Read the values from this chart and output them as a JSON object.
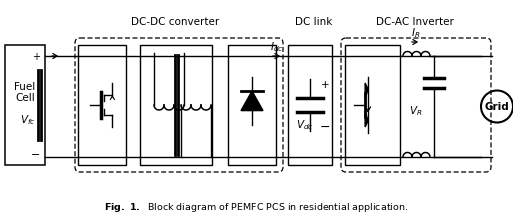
{
  "fig_width": 5.13,
  "fig_height": 2.22,
  "dpi": 100,
  "bg": "#ffffff",
  "lbl_dcdc": "DC-DC converter",
  "lbl_dclink": "DC link",
  "lbl_dcac": "DC-AC Inverter",
  "lbl_fc1": "Fuel",
  "lbl_fc2": "Cell",
  "lbl_vfc": "$V_{fc}$",
  "lbl_vdc": "$V_{dc}$",
  "lbl_idc": "$I_{dc}$",
  "lbl_ir": "$I_R$",
  "lbl_vr": "$V_R$",
  "lbl_grid": "Grid",
  "lbl_plus": "+",
  "lbl_minus": "−",
  "cap_bold": "Fig. 1.",
  "cap_rest": "  Block diagram of PEMFC PCS in residential application."
}
